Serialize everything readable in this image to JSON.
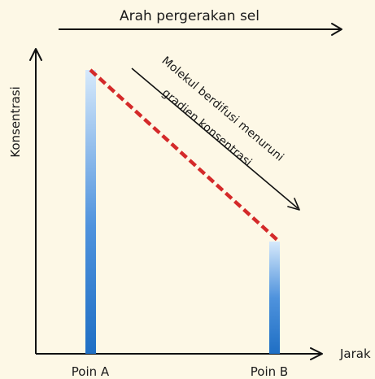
{
  "header": {
    "direction_label": "Arah pergerakan sel"
  },
  "axes": {
    "y_label": "Konsentrasi",
    "x_label": "Jarak"
  },
  "points": {
    "a_label": "Poin A",
    "b_label": "Poin B"
  },
  "annotation": {
    "line1": "Molekul berdifusi menuruni",
    "line2": "gradien konsentrasi"
  },
  "colors": {
    "gradient_line": "#d42a2a",
    "bar_dark": "#1f6fc4",
    "bar_light": "#d6e9fb",
    "background": "#fdf8e6"
  }
}
